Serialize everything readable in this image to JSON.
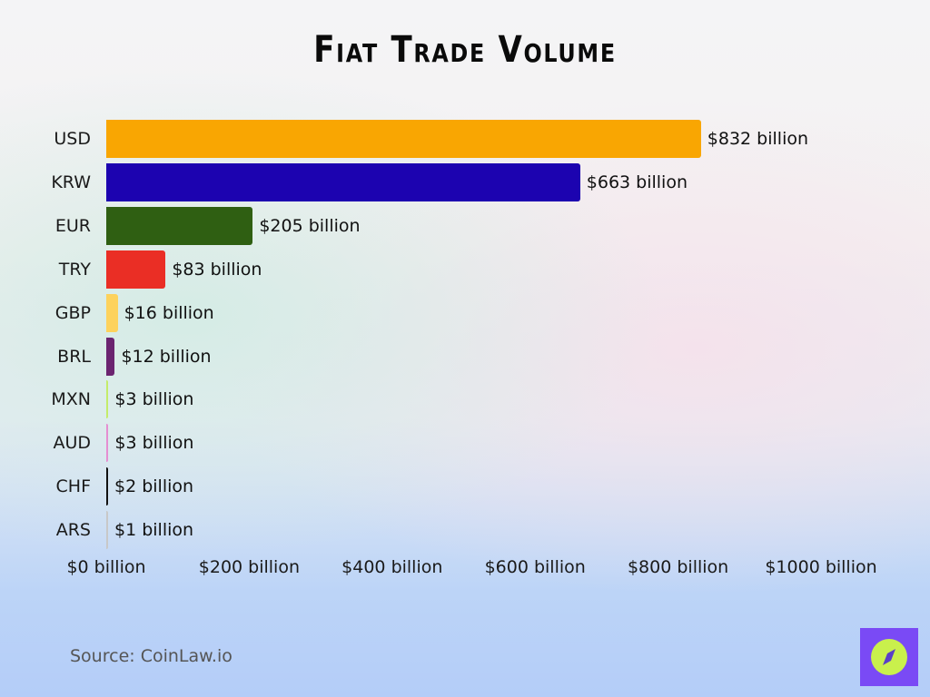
{
  "title": "Fiat Trade Volume",
  "source": "Source: CoinLaw.io",
  "logo_icon": "compass-icon",
  "chart_data": {
    "type": "bar",
    "orientation": "horizontal",
    "title": "Fiat Trade Volume",
    "xlabel": "",
    "ylabel": "",
    "unit": "billion USD",
    "categories": [
      "USD",
      "KRW",
      "EUR",
      "TRY",
      "GBP",
      "BRL",
      "MXN",
      "AUD",
      "CHF",
      "ARS"
    ],
    "values": [
      832,
      663,
      205,
      83,
      16,
      12,
      3,
      3,
      2,
      1
    ],
    "value_labels": [
      "$832 billion",
      "$663 billion",
      "$205 billion",
      "$83 billion",
      "$16 billion",
      "$12 billion",
      "$3 billion",
      "$3 billion",
      "$2 billion",
      "$1 billion"
    ],
    "colors": [
      "#f9a602",
      "#1c03b0",
      "#2f5f12",
      "#ea2e25",
      "#fdd25c",
      "#6b2470",
      "#c4ec6a",
      "#e58ed1",
      "#111111",
      "#c8c8c8"
    ],
    "xlim": [
      0,
      1000
    ],
    "x_ticks": [
      0,
      200,
      400,
      600,
      800,
      1000
    ],
    "x_tick_labels": [
      "$0 billion",
      "$200 billion",
      "$400 billion",
      "$600 billion",
      "$800 billion",
      "$1000 billion"
    ],
    "grid": false,
    "legend": null
  }
}
